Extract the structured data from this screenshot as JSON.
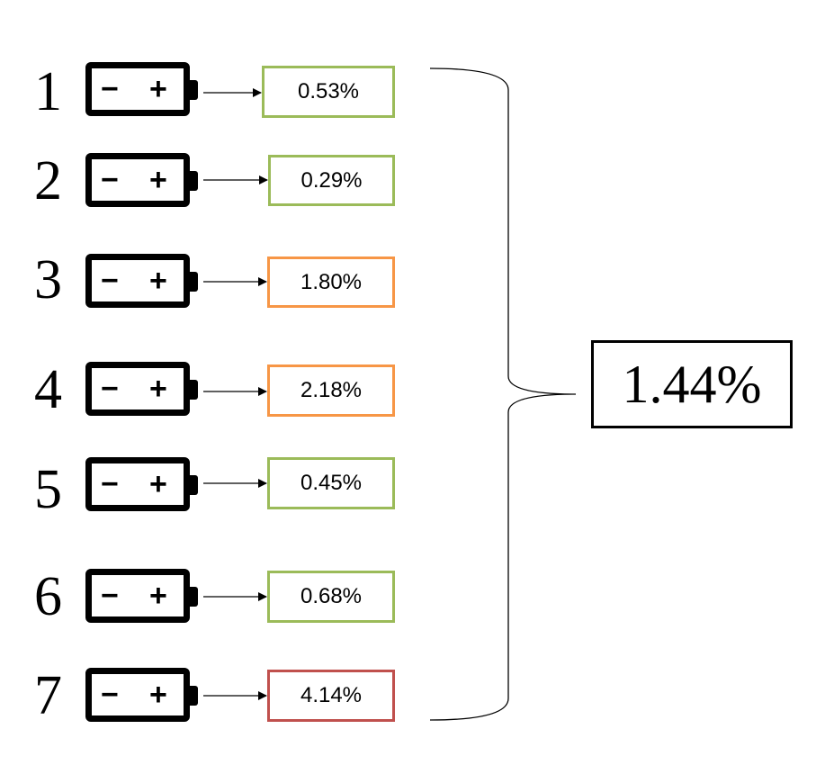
{
  "cells": [
    {
      "label": "1",
      "value": "0.53%",
      "status_color": "#9bbb59"
    },
    {
      "label": "2",
      "value": "0.29%",
      "status_color": "#9bbb59"
    },
    {
      "label": "3",
      "value": "1.80%",
      "status_color": "#f79646"
    },
    {
      "label": "4",
      "value": "2.18%",
      "status_color": "#f79646"
    },
    {
      "label": "5",
      "value": "0.45%",
      "status_color": "#9bbb59"
    },
    {
      "label": "6",
      "value": "0.68%",
      "status_color": "#9bbb59"
    },
    {
      "label": "7",
      "value": "4.14%",
      "status_color": "#c0504d"
    }
  ],
  "battery_icon": {
    "minus_symbol": "−",
    "plus_symbol": "+"
  },
  "average": {
    "value": "1.44%"
  }
}
